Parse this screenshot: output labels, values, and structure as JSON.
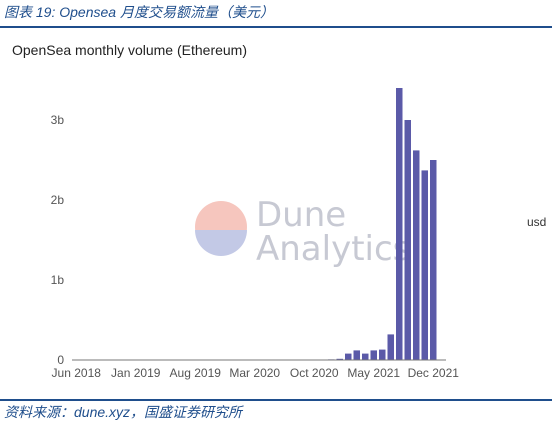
{
  "caption": "图表 19: Opensea 月度交易额流量（美元）",
  "source": "资料来源：dune.xyz，国盛证券研究所",
  "watermark": {
    "line1": "Dune",
    "line2": "Analytics"
  },
  "chart_data": {
    "type": "bar",
    "title": "OpenSea monthly volume (Ethereum)",
    "xlabel": "",
    "ylabel": "",
    "x_tick_labels": [
      "Jun 2018",
      "Jan 2019",
      "Aug 2019",
      "Mar 2020",
      "Oct 2020",
      "May 2021",
      "Dec 2021"
    ],
    "y_tick_labels": [
      "0",
      "1b",
      "2b",
      "3b"
    ],
    "ylim": [
      0,
      3500000000
    ],
    "grid": false,
    "legend_position": "right",
    "series": [
      {
        "name": "usd",
        "color": "#5b5aa8",
        "categories": [
          "2018-06",
          "2018-07",
          "2018-08",
          "2018-09",
          "2018-10",
          "2018-11",
          "2018-12",
          "2019-01",
          "2019-02",
          "2019-03",
          "2019-04",
          "2019-05",
          "2019-06",
          "2019-07",
          "2019-08",
          "2019-09",
          "2019-10",
          "2019-11",
          "2019-12",
          "2020-01",
          "2020-02",
          "2020-03",
          "2020-04",
          "2020-05",
          "2020-06",
          "2020-07",
          "2020-08",
          "2020-09",
          "2020-10",
          "2020-11",
          "2020-12",
          "2021-01",
          "2021-02",
          "2021-03",
          "2021-04",
          "2021-05",
          "2021-06",
          "2021-07",
          "2021-08",
          "2021-09",
          "2021-10",
          "2021-11",
          "2021-12",
          "2022-01"
        ],
        "values": [
          1000000,
          1000000,
          1000000,
          1000000,
          1000000,
          1000000,
          1000000,
          1500000,
          1500000,
          1500000,
          1500000,
          2000000,
          2000000,
          2000000,
          2000000,
          2000000,
          2000000,
          2000000,
          2000000,
          2000000,
          2000000,
          2000000,
          2000000,
          2000000,
          3000000,
          3000000,
          5000000,
          5000000,
          5000000,
          5000000,
          8000000,
          15000000,
          80000000,
          120000000,
          80000000,
          120000000,
          130000000,
          320000000,
          3400000000,
          3000000000,
          2620000000,
          2370000000,
          2500000000,
          0
        ]
      }
    ]
  }
}
